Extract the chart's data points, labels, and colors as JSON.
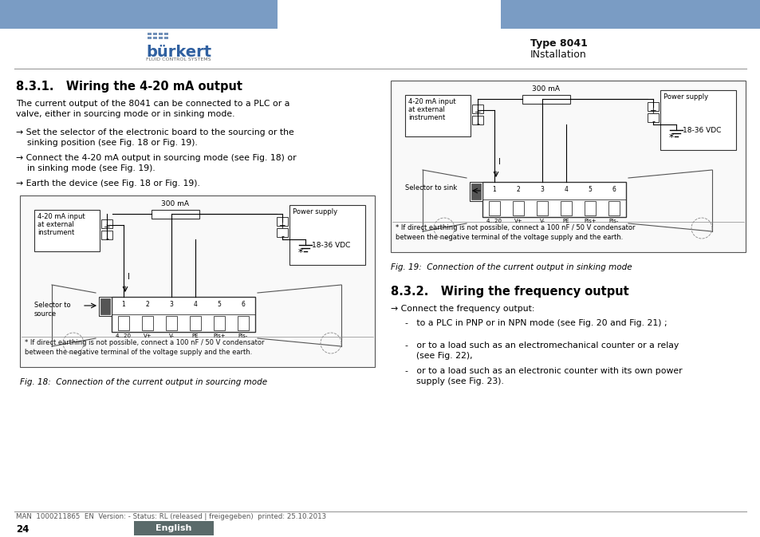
{
  "page_bg": "#ffffff",
  "header_bar_color": "#7a9cc4",
  "type_text": "Type 8041",
  "installation_text": "INstallation",
  "logo_text": "bürkert",
  "logo_sub": "FLUID CONTROL SYSTEMS",
  "section_title_1": "8.3.1.   Wiring the 4-20 mA output",
  "body_text_1": "The current output of the 8041 can be connected to a PLC or a\nvalve, either in sourcing mode or in sinking mode.",
  "arrow1": "→ Set the selector of the electronic board to the sourcing or the\n    sinking position (see Fig. 18 or Fig. 19).",
  "arrow2": "→ Connect the 4-20 mA output in sourcing mode (see Fig. 18) or\n    in sinking mode (see Fig. 19).",
  "arrow3": "→ Earth the device (see Fig. 18 or Fig. 19).",
  "fig18_caption": "Fig. 18:  Connection of the current output in sourcing mode",
  "fig19_caption": "Fig. 19:  Connection of the current output in sinking mode",
  "section_title_2": "8.3.2.   Wiring the frequency output",
  "freq_arrow": "→ Connect the frequency output:",
  "freq_bullet1": "-   to a PLC in PNP or in NPN mode (see Fig. 20 and Fig. 21) ;",
  "freq_bullet2": "-   or to a load such as an electromechanical counter or a relay\n    (see Fig. 22),",
  "freq_bullet3": "-   or to a load such as an electronic counter with its own power\n    supply (see Fig. 23).",
  "footer_text": "MAN  1000211865  EN  Version: - Status: RL (released | freigegeben)  printed: 25.10.2013",
  "page_num": "24",
  "english_btn_color": "#5a6a6a",
  "fig_note": "* If direct earthing is not possible, connect a 100 nF / 50 V condensator\nbetween the negative terminal of the voltage supply and the earth."
}
